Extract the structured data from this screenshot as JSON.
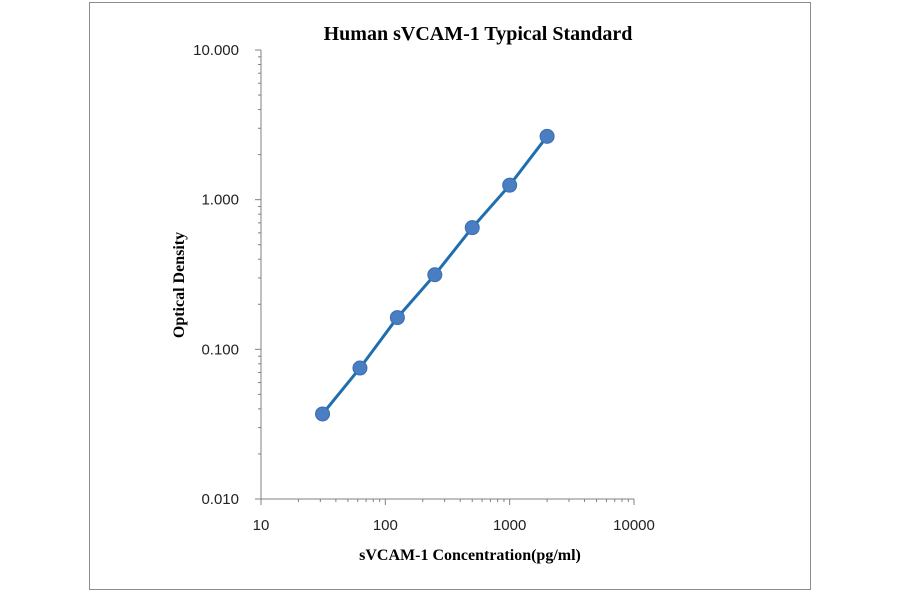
{
  "chart_data": {
    "type": "scatter",
    "title": "Human sVCAM-1 Typical Standard",
    "xlabel": "sVCAM-1 Concentration(pg/ml)",
    "ylabel": "Optical Density",
    "x_scale": "log",
    "y_scale": "log",
    "xlim": [
      10,
      10000
    ],
    "ylim": [
      0.01,
      10
    ],
    "x_ticks": [
      "10",
      "100",
      "1000",
      "10000"
    ],
    "y_ticks": [
      "0.010",
      "0.100",
      "1.000",
      "10.000"
    ],
    "grid": false,
    "legend": "none",
    "colors": {
      "series": "#1f6fb0",
      "marker": "#4a7ec2",
      "axis": "#808080"
    },
    "series": [
      {
        "x": [
          31.25,
          62.5,
          125,
          250,
          500,
          1000,
          2000
        ],
        "y": [
          0.037,
          0.075,
          0.163,
          0.315,
          0.65,
          1.25,
          2.65
        ]
      }
    ]
  }
}
